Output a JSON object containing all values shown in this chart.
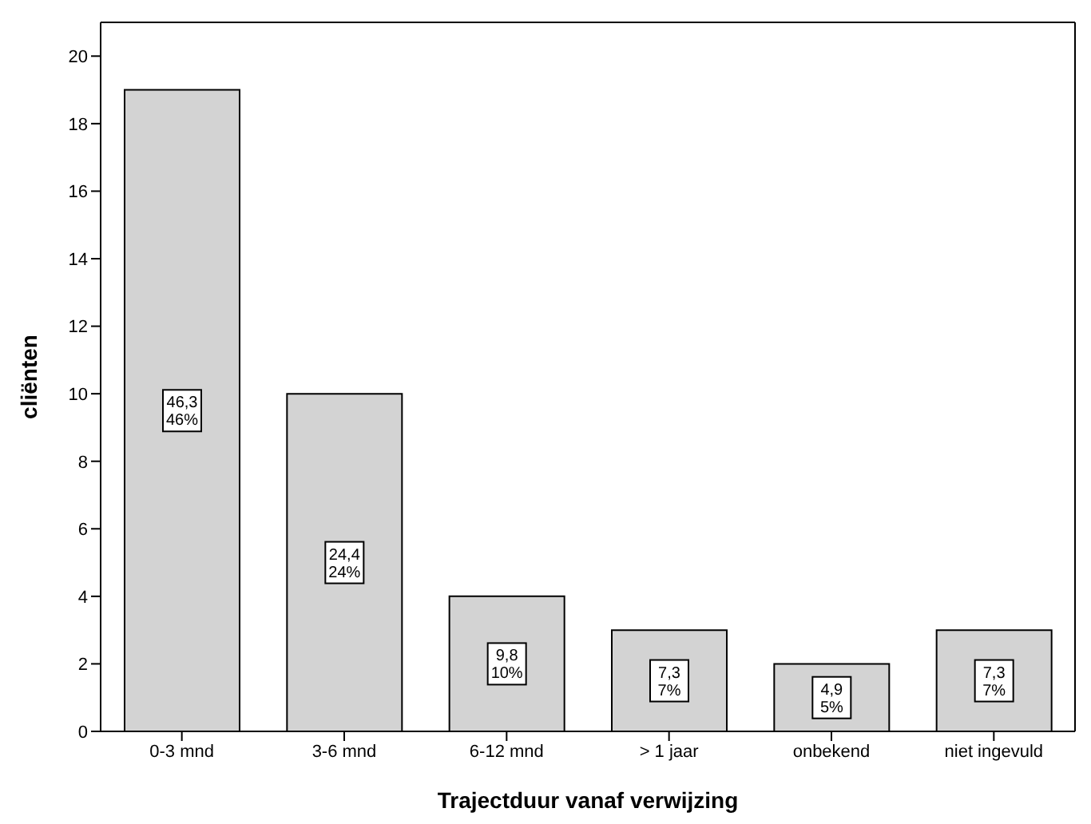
{
  "chart_data": {
    "type": "bar",
    "xlabel": "Trajectduur vanaf verwijzing",
    "ylabel": "cliënten",
    "categories": [
      "0-3 mnd",
      "3-6 mnd",
      "6-12 mnd",
      "> 1 jaar",
      "onbekend",
      "niet ingevuld"
    ],
    "values": [
      19,
      10,
      4,
      3,
      2,
      3
    ],
    "annotations": [
      {
        "text": "46,3\n46%",
        "x": "0-3 mnd"
      },
      {
        "text": "24,4\n24%",
        "x": "3-6 mnd"
      },
      {
        "text": "9,8\n10%",
        "x": "6-12 mnd"
      },
      {
        "text": "7,3\n7%",
        "x": "> 1 jaar"
      },
      {
        "text": "4,9\n5%",
        "x": "onbekend"
      },
      {
        "text": "7,3\n7%",
        "x": "niet ingevuld"
      }
    ],
    "color": "#d3d3d3",
    "ylim": [
      0,
      21
    ],
    "yticks": [
      0,
      2,
      4,
      6,
      8,
      10,
      12,
      14,
      16,
      18,
      20
    ],
    "grid": false,
    "legend": false
  }
}
